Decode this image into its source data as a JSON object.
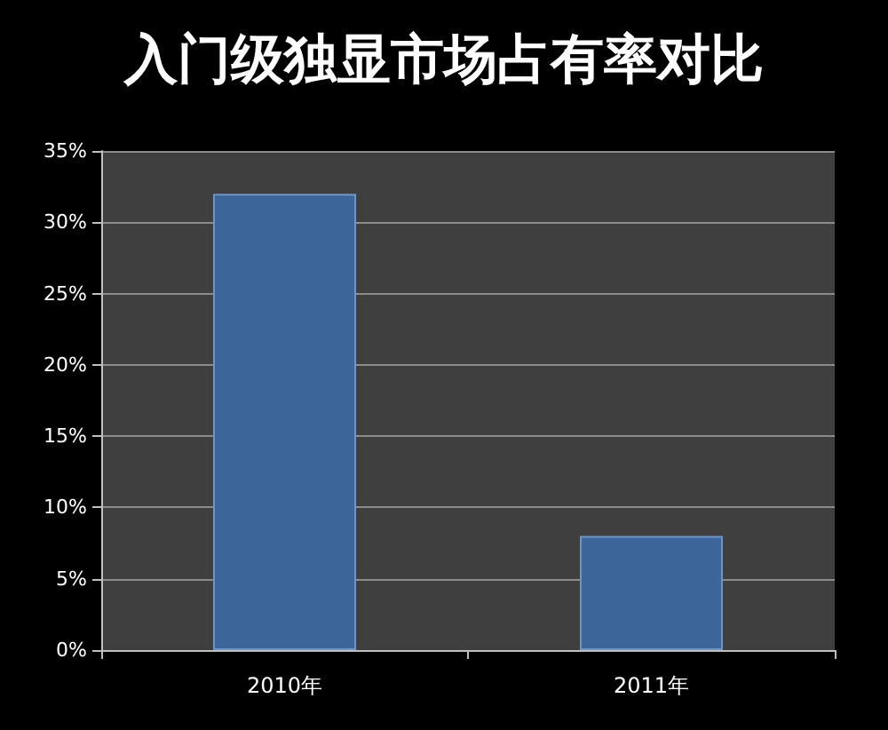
{
  "chart_data": {
    "type": "bar",
    "title": "入门级独显市场占有率对比",
    "categories": [
      "2010年",
      "2011年"
    ],
    "values": [
      32,
      8
    ],
    "color": "#3c6699",
    "ylim": [
      0,
      35
    ],
    "yticks": [
      {
        "value": 0,
        "label": "0%"
      },
      {
        "value": 5,
        "label": "5%"
      },
      {
        "value": 10,
        "label": "10%"
      },
      {
        "value": 15,
        "label": "15%"
      },
      {
        "value": 20,
        "label": "20%"
      },
      {
        "value": 25,
        "label": "25%"
      },
      {
        "value": 30,
        "label": "30%"
      },
      {
        "value": 35,
        "label": "35%"
      }
    ],
    "grid": "y"
  }
}
